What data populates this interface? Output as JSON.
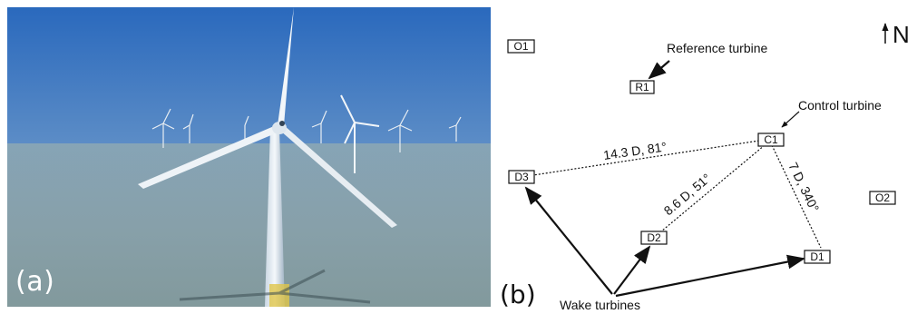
{
  "panels": {
    "a_label": "(a)",
    "b_label": "(b)"
  },
  "turbines": {
    "O1": "O1",
    "R1": "R1",
    "C1": "C1",
    "D1": "D1",
    "D2": "D2",
    "D3": "D3",
    "O2": "O2"
  },
  "annotations": {
    "reference": "Reference turbine",
    "control": "Control turbine",
    "wake": "Wake turbines",
    "north": "N"
  },
  "distances": {
    "c1_d3": "14.3 D, 81°",
    "c1_d2": "8.6 D, 51°",
    "c1_d1": "7 D, 340°"
  },
  "colors": {
    "sky_top": "#2d6fc0",
    "sky_bottom": "#8aa9c8",
    "sea": "#8fa7ad",
    "ink": "#111111"
  }
}
